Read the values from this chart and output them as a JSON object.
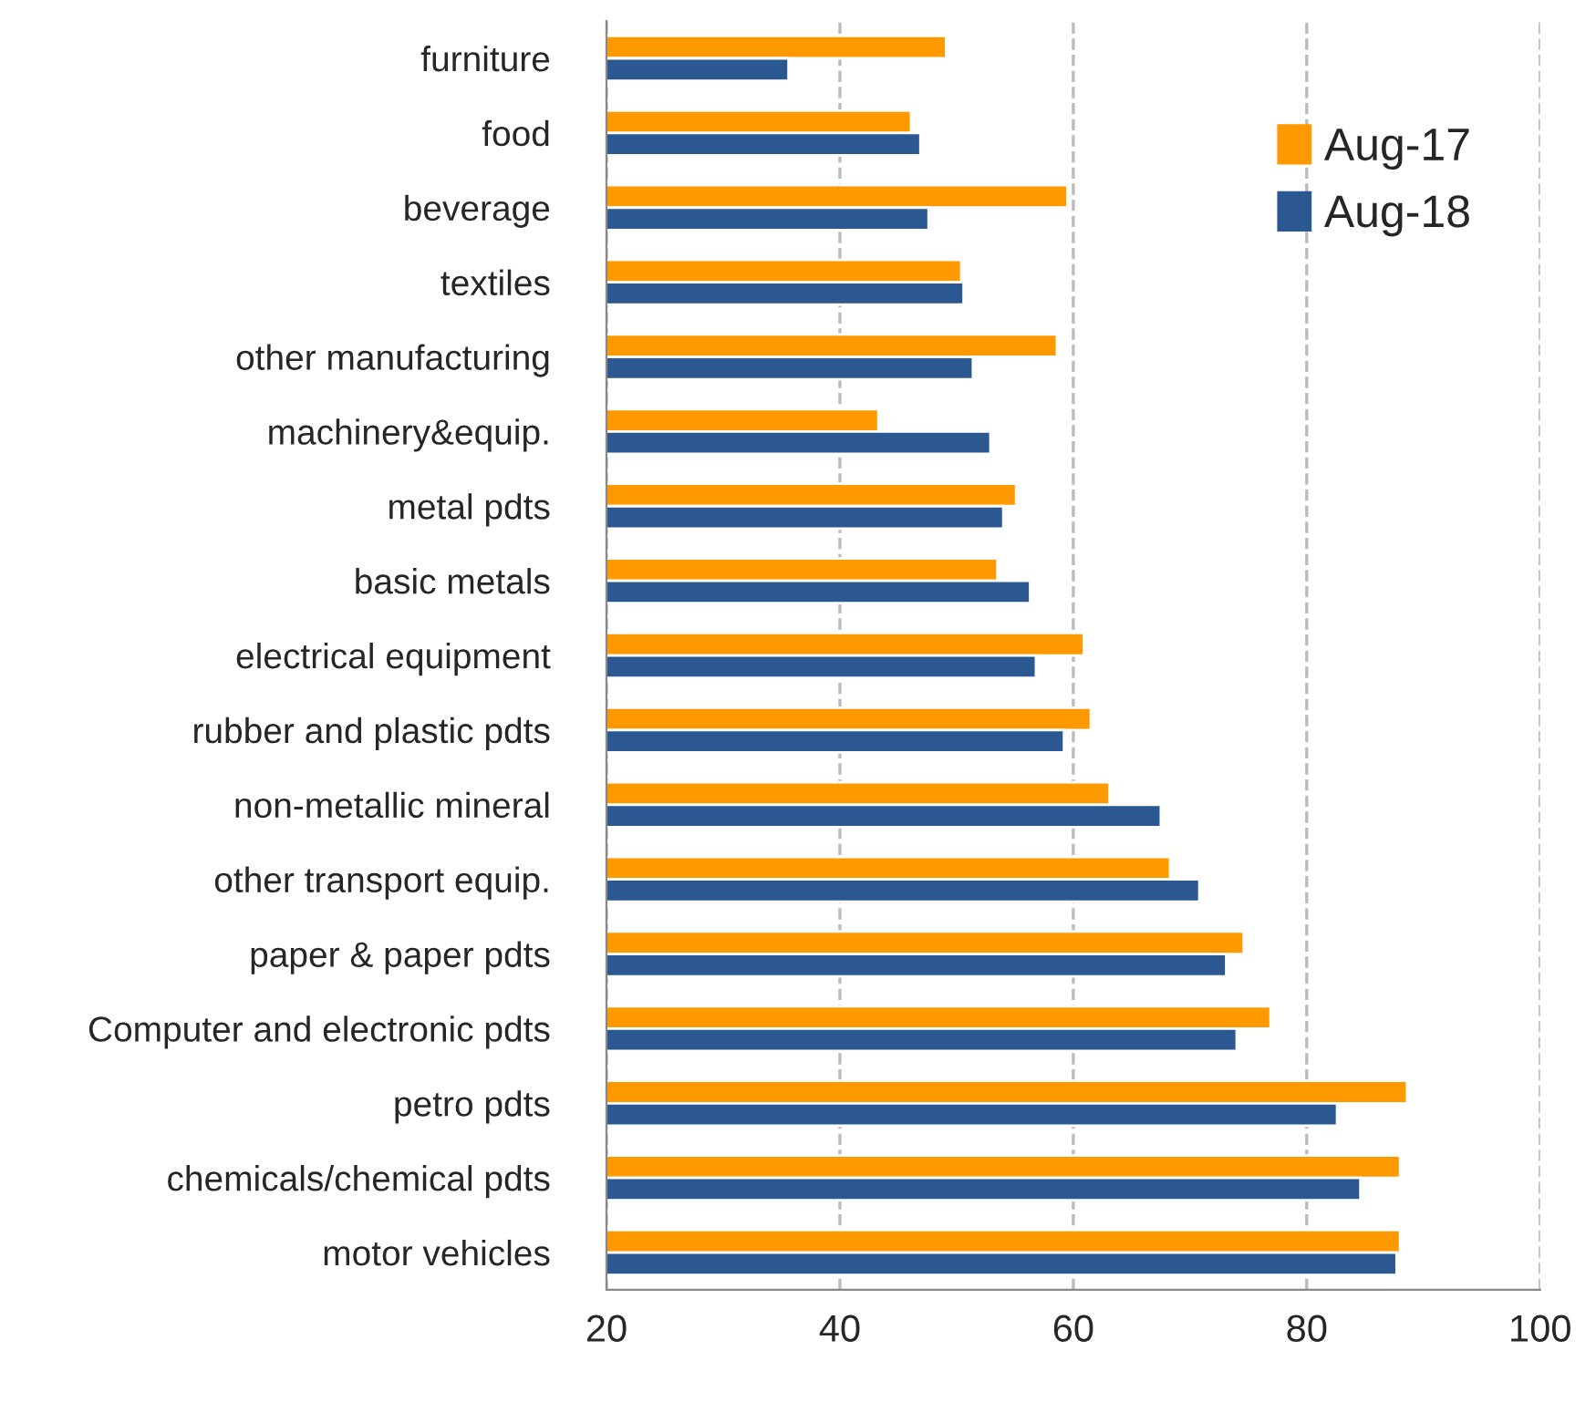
{
  "chart_data": {
    "type": "bar",
    "orientation": "horizontal",
    "categories": [
      "furniture",
      "food",
      "beverage",
      "textiles",
      "other manufacturing",
      "machinery&equip.",
      "metal pdts",
      "basic metals",
      "electrical equipment",
      "rubber and plastic pdts",
      "non-metallic mineral",
      "other transport equip.",
      "paper & paper pdts",
      "Computer and electronic pdts",
      "petro pdts",
      "chemicals/chemical pdts",
      "motor vehicles"
    ],
    "series": [
      {
        "name": "Aug-17",
        "color": "#ff9900",
        "values": [
          49.1,
          46.1,
          59.5,
          50.4,
          58.6,
          43.3,
          55.1,
          53.5,
          60.9,
          61.5,
          63.1,
          68.3,
          74.6,
          76.9,
          88.6,
          88.0,
          88.0
        ]
      },
      {
        "name": "Aug-18",
        "color": "#2b5891",
        "values": [
          35.6,
          46.9,
          47.6,
          50.6,
          51.4,
          52.9,
          54.0,
          56.3,
          56.8,
          59.2,
          67.5,
          70.8,
          73.1,
          74.0,
          82.6,
          84.6,
          87.7
        ]
      }
    ],
    "xlim": [
      20,
      100
    ],
    "xticks": [
      20,
      40,
      60,
      80,
      100
    ],
    "grid": "x",
    "legend": "top right"
  }
}
